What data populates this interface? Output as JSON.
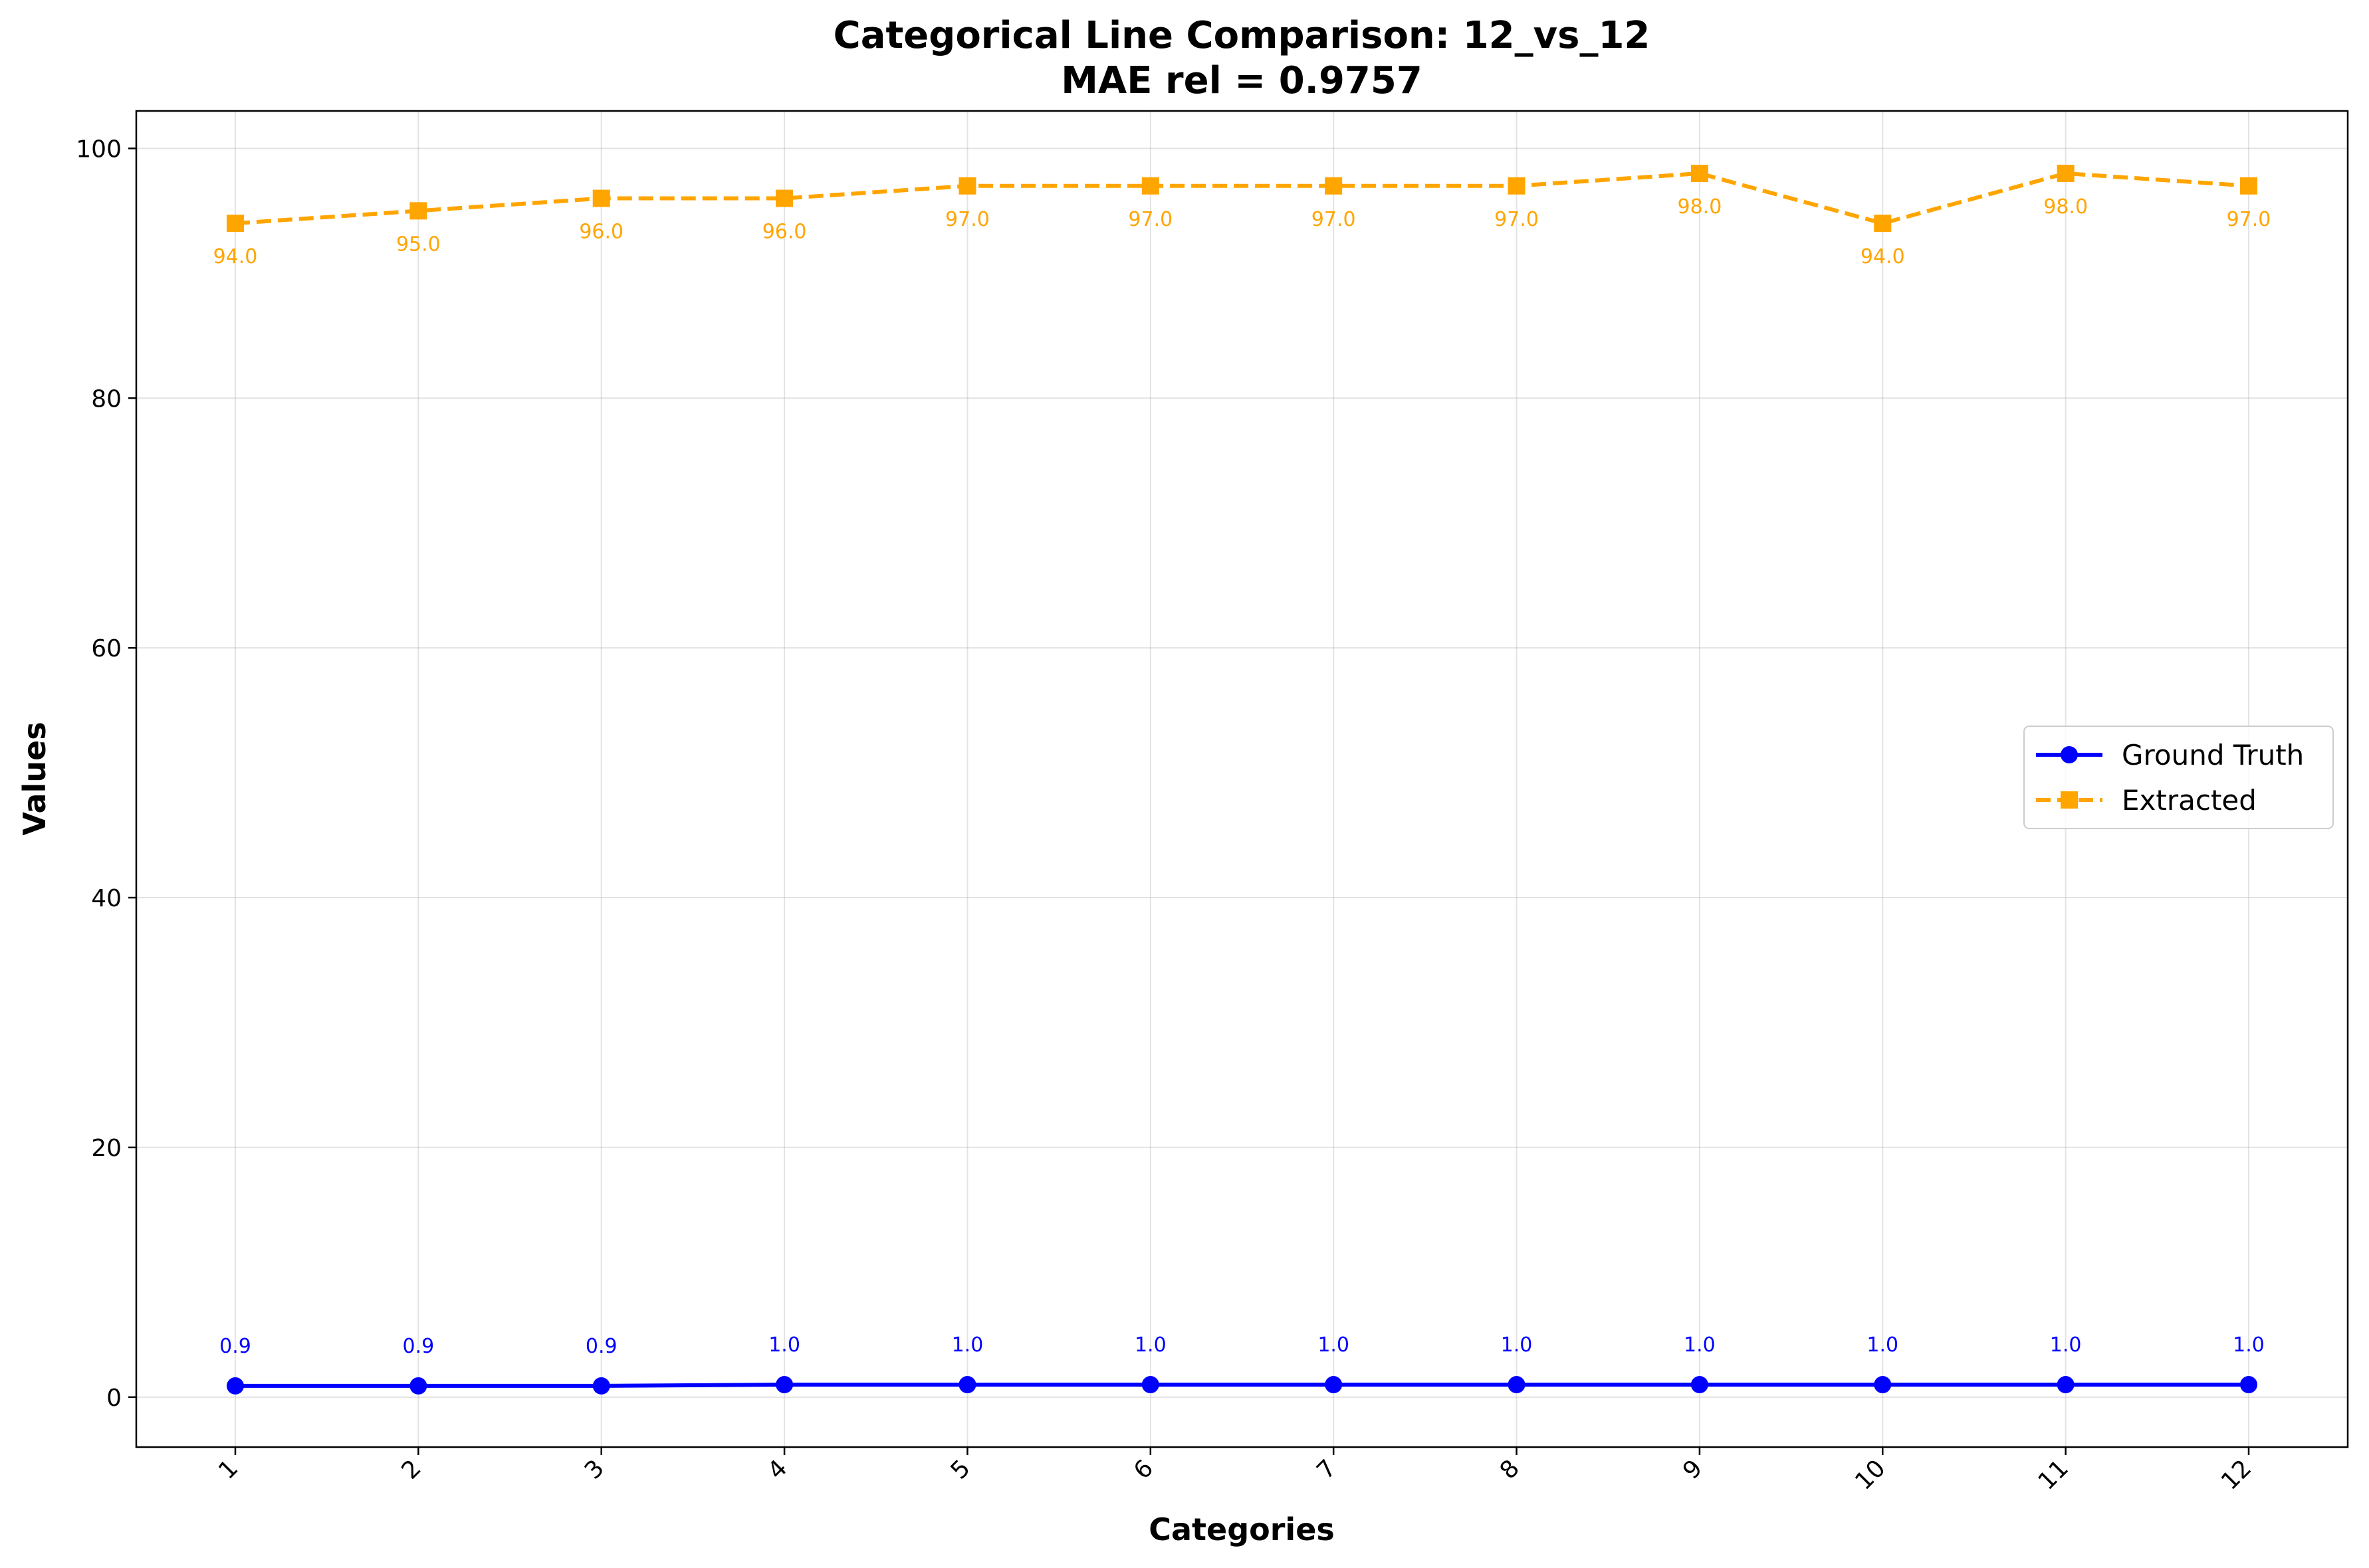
{
  "chart_data": {
    "type": "line",
    "title": "Categorical Line Comparison: 12_vs_12",
    "subtitle": "MAE rel = 0.9757",
    "xlabel": "Categories",
    "ylabel": "Values",
    "categories": [
      "1",
      "2",
      "3",
      "4",
      "5",
      "6",
      "7",
      "8",
      "9",
      "10",
      "11",
      "12"
    ],
    "ylim": [
      -4,
      103
    ],
    "yticks": [
      "0",
      "20",
      "40",
      "60",
      "80",
      "100"
    ],
    "grid": true,
    "legend_position": "center-right",
    "series": [
      {
        "name": "Ground Truth",
        "color": "#0000ff",
        "line_style": "solid",
        "marker": "circle",
        "values": [
          0.9,
          0.9,
          0.9,
          1.0,
          1.0,
          1.0,
          1.0,
          1.0,
          1.0,
          1.0,
          1.0,
          1.0
        ],
        "data_labels": [
          "0.9",
          "0.9",
          "0.9",
          "1.0",
          "1.0",
          "1.0",
          "1.0",
          "1.0",
          "1.0",
          "1.0",
          "1.0",
          "1.0"
        ],
        "label_position": "above"
      },
      {
        "name": "Extracted",
        "color": "#ffa500",
        "line_style": "dashed",
        "marker": "square",
        "values": [
          94.0,
          95.0,
          96.0,
          96.0,
          97.0,
          97.0,
          97.0,
          97.0,
          98.0,
          94.0,
          98.0,
          97.0
        ],
        "data_labels": [
          "94.0",
          "95.0",
          "96.0",
          "96.0",
          "97.0",
          "97.0",
          "97.0",
          "97.0",
          "98.0",
          "94.0",
          "98.0",
          "97.0"
        ],
        "label_position": "below"
      }
    ]
  }
}
